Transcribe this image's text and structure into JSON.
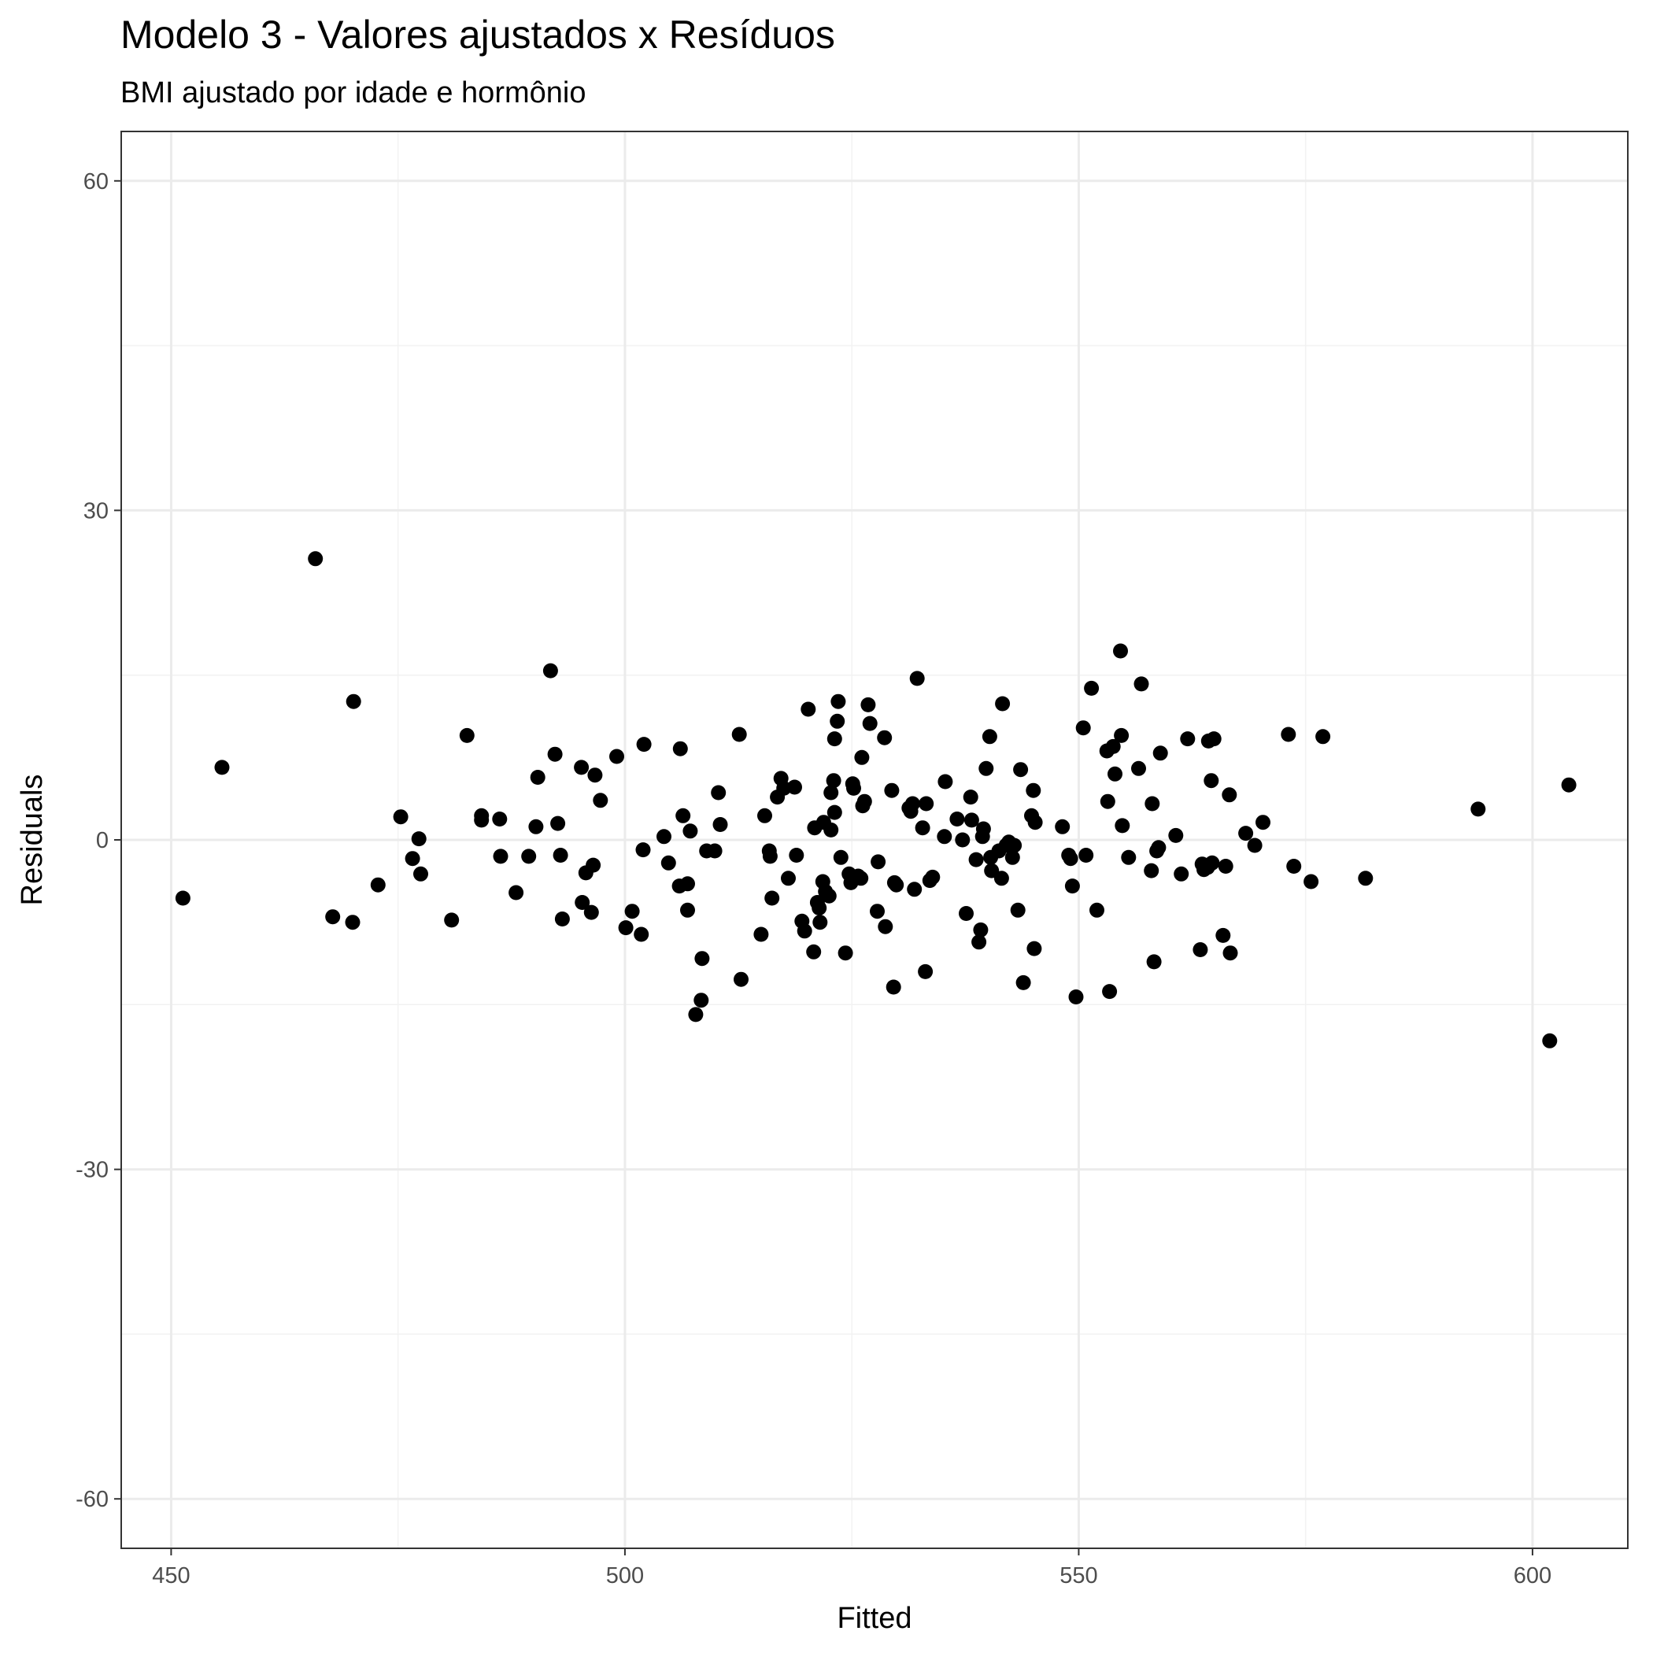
{
  "chart_data": {
    "type": "scatter",
    "title": "Modelo 3 - Valores ajustados x Resíduos",
    "subtitle": "BMI ajustado por idade e hormônio",
    "xlabel": "Fitted",
    "ylabel": "Residuals",
    "xlim": [
      444.5,
      610.5
    ],
    "ylim": [
      -64.5,
      64.5
    ],
    "x_ticks": [
      450,
      500,
      550,
      600
    ],
    "y_ticks": [
      -60,
      -30,
      0,
      30,
      60
    ],
    "x_tick_labels": [
      "450",
      "500",
      "550",
      "600"
    ],
    "y_tick_labels": [
      "-60",
      "-30",
      "0",
      "30",
      "60"
    ],
    "grid": true,
    "legend": "none",
    "point_color": "#000000",
    "points": [
      [
        451.3,
        -5.3
      ],
      [
        455.6,
        6.6
      ],
      [
        465.9,
        25.6
      ],
      [
        467.8,
        -7.0
      ],
      [
        470.0,
        -7.5
      ],
      [
        470.1,
        12.6
      ],
      [
        472.8,
        -4.1
      ],
      [
        475.3,
        2.1
      ],
      [
        476.6,
        -1.7
      ],
      [
        477.3,
        0.1
      ],
      [
        477.5,
        -3.1
      ],
      [
        480.9,
        -7.3
      ],
      [
        482.6,
        9.5
      ],
      [
        484.2,
        2.2
      ],
      [
        484.2,
        1.8
      ],
      [
        486.2,
        1.9
      ],
      [
        486.3,
        -1.5
      ],
      [
        488.0,
        -4.8
      ],
      [
        489.4,
        -1.5
      ],
      [
        490.2,
        1.2
      ],
      [
        490.4,
        5.7
      ],
      [
        491.8,
        15.4
      ],
      [
        492.3,
        7.8
      ],
      [
        492.6,
        1.5
      ],
      [
        492.9,
        -1.4
      ],
      [
        493.1,
        -7.2
      ],
      [
        495.2,
        6.6
      ],
      [
        495.3,
        -5.7
      ],
      [
        495.7,
        -3.0
      ],
      [
        496.3,
        -6.6
      ],
      [
        496.5,
        -2.3
      ],
      [
        496.7,
        5.9
      ],
      [
        497.3,
        3.6
      ],
      [
        499.1,
        7.6
      ],
      [
        500.1,
        -8.0
      ],
      [
        500.8,
        -6.5
      ],
      [
        501.8,
        -8.6
      ],
      [
        502.0,
        -0.9
      ],
      [
        502.1,
        8.7
      ],
      [
        504.3,
        0.3
      ],
      [
        504.8,
        -2.1
      ],
      [
        506.0,
        -4.2
      ],
      [
        506.1,
        8.3
      ],
      [
        506.4,
        2.2
      ],
      [
        506.9,
        -6.4
      ],
      [
        506.9,
        -4.0
      ],
      [
        507.2,
        0.8
      ],
      [
        507.8,
        -15.9
      ],
      [
        508.4,
        -14.6
      ],
      [
        508.5,
        -10.8
      ],
      [
        509.0,
        -1.0
      ],
      [
        509.9,
        -1.0
      ],
      [
        510.3,
        4.3
      ],
      [
        510.5,
        1.4
      ],
      [
        512.6,
        9.6
      ],
      [
        512.8,
        -12.7
      ],
      [
        515.0,
        -8.6
      ],
      [
        515.4,
        2.2
      ],
      [
        515.9,
        -1.0
      ],
      [
        516.0,
        -1.5
      ],
      [
        516.2,
        -5.3
      ],
      [
        516.8,
        3.9
      ],
      [
        517.2,
        5.6
      ],
      [
        517.5,
        4.7
      ],
      [
        518.0,
        -3.5
      ],
      [
        518.7,
        4.8
      ],
      [
        518.9,
        -1.4
      ],
      [
        519.5,
        -7.4
      ],
      [
        519.8,
        -8.3
      ],
      [
        520.2,
        11.9
      ],
      [
        520.8,
        -10.2
      ],
      [
        520.9,
        1.1
      ],
      [
        521.2,
        -5.7
      ],
      [
        521.4,
        -6.2
      ],
      [
        521.5,
        -7.5
      ],
      [
        521.8,
        -3.8
      ],
      [
        521.9,
        1.6
      ],
      [
        522.1,
        -4.7
      ],
      [
        522.5,
        -5.1
      ],
      [
        522.7,
        0.9
      ],
      [
        522.7,
        4.3
      ],
      [
        523.0,
        5.4
      ],
      [
        523.1,
        2.5
      ],
      [
        523.1,
        9.2
      ],
      [
        523.4,
        10.8
      ],
      [
        523.5,
        12.6
      ],
      [
        523.8,
        -1.6
      ],
      [
        524.3,
        -10.3
      ],
      [
        524.7,
        -3.1
      ],
      [
        524.9,
        -3.9
      ],
      [
        525.1,
        5.1
      ],
      [
        525.2,
        4.7
      ],
      [
        525.7,
        -3.3
      ],
      [
        526.0,
        -3.5
      ],
      [
        526.1,
        7.5
      ],
      [
        526.2,
        3.1
      ],
      [
        526.4,
        3.5
      ],
      [
        526.8,
        12.3
      ],
      [
        527.0,
        10.6
      ],
      [
        527.8,
        -6.5
      ],
      [
        527.9,
        -2.0
      ],
      [
        528.6,
        9.3
      ],
      [
        528.7,
        -7.9
      ],
      [
        529.4,
        4.5
      ],
      [
        529.6,
        -13.4
      ],
      [
        529.7,
        -3.9
      ],
      [
        529.9,
        -4.1
      ],
      [
        531.3,
        2.9
      ],
      [
        531.5,
        2.6
      ],
      [
        531.7,
        3.3
      ],
      [
        531.9,
        -4.5
      ],
      [
        532.2,
        14.7
      ],
      [
        532.8,
        1.1
      ],
      [
        533.1,
        -12.0
      ],
      [
        533.2,
        3.3
      ],
      [
        533.6,
        -3.7
      ],
      [
        533.9,
        -3.4
      ],
      [
        535.2,
        0.3
      ],
      [
        535.3,
        5.3
      ],
      [
        536.6,
        1.9
      ],
      [
        537.2,
        0.0
      ],
      [
        537.6,
        -6.7
      ],
      [
        538.1,
        3.9
      ],
      [
        538.2,
        1.8
      ],
      [
        538.7,
        -1.8
      ],
      [
        539.0,
        -9.3
      ],
      [
        539.2,
        -8.2
      ],
      [
        539.4,
        0.3
      ],
      [
        539.5,
        1.0
      ],
      [
        539.8,
        6.5
      ],
      [
        540.2,
        9.4
      ],
      [
        540.3,
        -1.6
      ],
      [
        540.4,
        -2.8
      ],
      [
        541.2,
        -1.0
      ],
      [
        541.5,
        -3.5
      ],
      [
        541.6,
        12.4
      ],
      [
        542.0,
        -0.5
      ],
      [
        542.3,
        -0.2
      ],
      [
        542.7,
        -1.6
      ],
      [
        542.9,
        -0.5
      ],
      [
        543.3,
        -6.4
      ],
      [
        543.6,
        6.4
      ],
      [
        543.9,
        -13.0
      ],
      [
        544.8,
        2.2
      ],
      [
        545.0,
        4.5
      ],
      [
        545.1,
        -9.9
      ],
      [
        545.2,
        1.6
      ],
      [
        548.2,
        1.2
      ],
      [
        548.9,
        -1.4
      ],
      [
        549.1,
        -1.7
      ],
      [
        549.3,
        -4.2
      ],
      [
        549.7,
        -14.3
      ],
      [
        550.5,
        10.2
      ],
      [
        550.8,
        -1.4
      ],
      [
        551.4,
        13.8
      ],
      [
        552.0,
        -6.4
      ],
      [
        553.1,
        8.1
      ],
      [
        553.2,
        3.5
      ],
      [
        553.4,
        -13.8
      ],
      [
        553.8,
        8.5
      ],
      [
        554.0,
        6.0
      ],
      [
        554.6,
        17.2
      ],
      [
        554.7,
        9.5
      ],
      [
        554.8,
        1.3
      ],
      [
        555.5,
        -1.6
      ],
      [
        556.6,
        6.5
      ],
      [
        556.9,
        14.2
      ],
      [
        558.0,
        -2.8
      ],
      [
        558.1,
        3.3
      ],
      [
        558.3,
        -11.1
      ],
      [
        558.6,
        -1.0
      ],
      [
        558.8,
        -0.7
      ],
      [
        559.0,
        7.9
      ],
      [
        560.7,
        0.4
      ],
      [
        561.3,
        -3.1
      ],
      [
        562.0,
        9.2
      ],
      [
        563.4,
        -10.0
      ],
      [
        563.6,
        -2.2
      ],
      [
        563.8,
        -2.7
      ],
      [
        564.2,
        -2.5
      ],
      [
        564.3,
        9.0
      ],
      [
        564.6,
        5.4
      ],
      [
        564.7,
        -2.1
      ],
      [
        564.9,
        9.2
      ],
      [
        565.9,
        -8.7
      ],
      [
        566.2,
        -2.4
      ],
      [
        566.6,
        4.1
      ],
      [
        566.7,
        -10.3
      ],
      [
        568.4,
        0.6
      ],
      [
        569.4,
        -0.5
      ],
      [
        570.3,
        1.6
      ],
      [
        573.1,
        9.6
      ],
      [
        573.7,
        -2.4
      ],
      [
        575.6,
        -3.8
      ],
      [
        576.9,
        9.4
      ],
      [
        581.6,
        -3.5
      ],
      [
        594.0,
        2.8
      ],
      [
        601.9,
        -18.3
      ],
      [
        604.0,
        5.0
      ]
    ]
  }
}
